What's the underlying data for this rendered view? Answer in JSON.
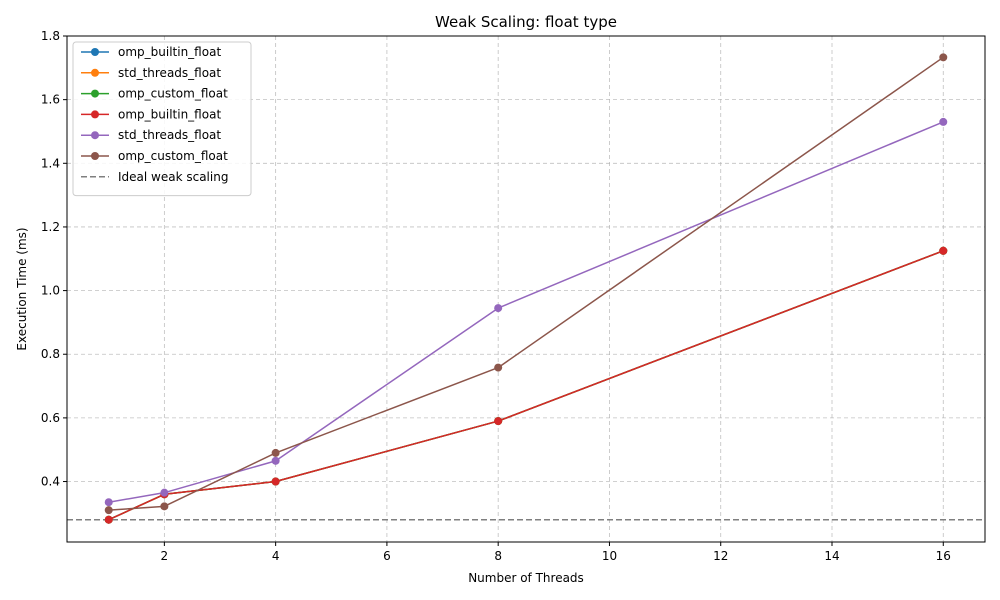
{
  "chart_data": {
    "type": "line",
    "title": "Weak Scaling: float type",
    "xlabel": "Number of Threads",
    "ylabel": "Execution Time (ms)",
    "xlim": [
      0.25,
      16.75
    ],
    "ylim": [
      0.21,
      1.8
    ],
    "xticks": [
      2,
      4,
      6,
      8,
      10,
      12,
      14,
      16
    ],
    "yticks": [
      0.4,
      0.6,
      0.8,
      1.0,
      1.2,
      1.4,
      1.6,
      1.8
    ],
    "ytick_labels": [
      "0.4",
      "0.6",
      "0.8",
      "1.0",
      "1.2",
      "1.4",
      "1.6",
      "1.8"
    ],
    "grid": true,
    "legend_position": "top-left",
    "x": [
      1,
      2,
      4,
      8,
      16
    ],
    "series": [
      {
        "name": "omp_builtin_float",
        "color": "#1f77b4",
        "values": [
          0.28,
          0.36,
          0.4,
          0.59,
          1.125
        ]
      },
      {
        "name": "std_threads_float",
        "color": "#ff7f0e",
        "values": [
          0.28,
          0.36,
          0.4,
          0.59,
          1.125
        ]
      },
      {
        "name": "omp_custom_float",
        "color": "#2ca02c",
        "values": [
          0.28,
          0.36,
          0.4,
          0.59,
          1.125
        ]
      },
      {
        "name": "omp_builtin_float",
        "color": "#d62728",
        "values": [
          0.28,
          0.36,
          0.4,
          0.59,
          1.125
        ]
      },
      {
        "name": "std_threads_float",
        "color": "#9467bd",
        "values": [
          0.335,
          0.365,
          0.465,
          0.945,
          1.53
        ]
      },
      {
        "name": "omp_custom_float",
        "color": "#8c564b",
        "values": [
          0.31,
          0.322,
          0.49,
          0.758,
          1.733
        ]
      }
    ],
    "reference_line": {
      "name": "Ideal weak scaling",
      "color": "#7f7f7f",
      "y": 0.28,
      "style": "dashed"
    }
  }
}
